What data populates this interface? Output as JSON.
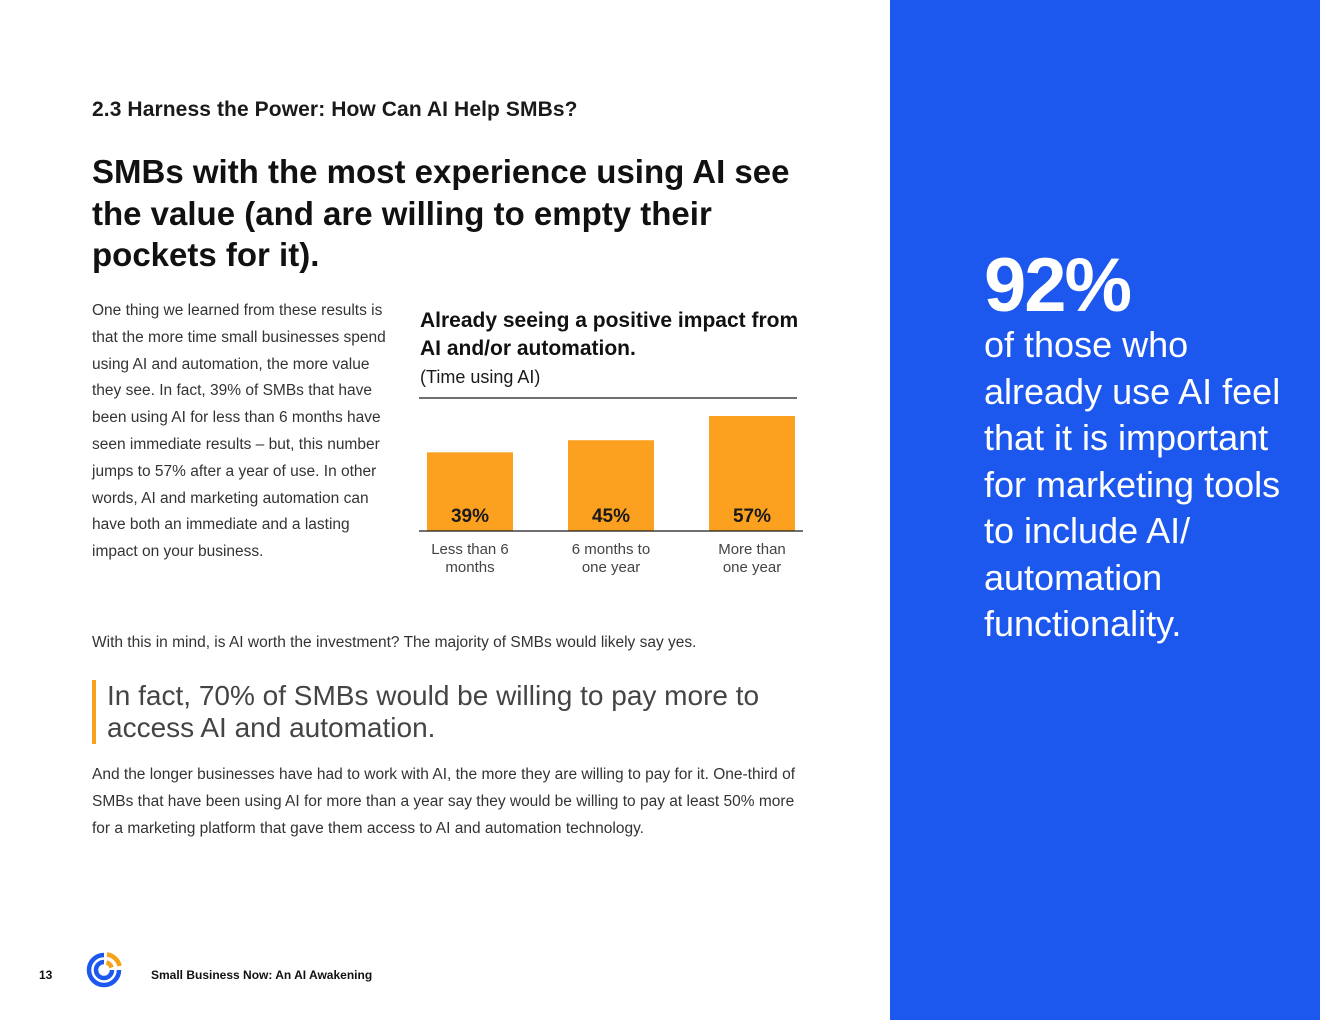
{
  "section": {
    "label": "2.3 Harness the Power: How Can AI Help SMBs?"
  },
  "headline": "SMBs with the most experience using AI see the value (and are willing to empty their pockets for it).",
  "body_intro": "One thing we learned from these results is that the more time small businesses spend using AI and automation, the more value they see. In fact, 39% of SMBs that have been using AI for less than 6 months have seen immediate results – but, this number jumps to 57% after a year of use. In other words, AI and marketing automation can have both an immediate and a lasting impact on your business.",
  "body_question": "With this in mind, is AI worth the investment? The majority of SMBs would likely say yes.",
  "pullquote": "In fact, 70% of SMBs would be willing to pay more to access AI and automation.",
  "body_closing": "And the longer businesses have had to work with AI, the more they are willing to pay for it. One-third of SMBs that have been using AI for more than a year say they would be willing to pay at least 50% more for a marketing platform that gave them access to AI and automation technology.",
  "stat": {
    "value": "92%",
    "text": "of those who already use AI feel that it is important for marketing tools to include AI/ automation functionality."
  },
  "footer": {
    "page_number": "13",
    "title": "Small Business Now: An AI Awakening"
  },
  "colors": {
    "panel_blue": "#1c57ee",
    "bar_orange": "#fba11f",
    "accent_orange": "#f7a21b"
  },
  "chart_data": {
    "type": "bar",
    "title": "Already seeing a positive impact from AI and/or automation.",
    "subtitle": "(Time using AI)",
    "categories": [
      "Less than 6 months",
      "6 months to one year",
      "More than one year"
    ],
    "category_lines": [
      [
        "Less than 6",
        "months"
      ],
      [
        "6 months to",
        "one year"
      ],
      [
        "More than",
        "one year"
      ]
    ],
    "values": [
      39,
      45,
      57
    ],
    "value_labels": [
      "39%",
      "45%",
      "57%"
    ],
    "ylim": [
      0,
      60
    ],
    "grid": false,
    "legend": "none"
  }
}
